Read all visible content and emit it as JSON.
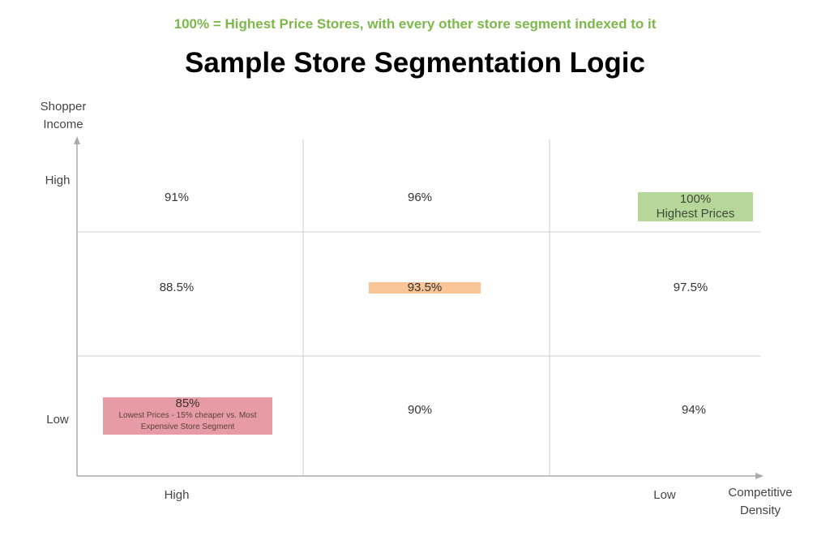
{
  "subtitle": "100% = Highest Price Stores, with every other store segment indexed to it",
  "title": "Sample Store Segmentation Logic",
  "y_axis": {
    "label_line1": "Shopper",
    "label_line2": "Income",
    "high": "High",
    "low": "Low"
  },
  "x_axis": {
    "label_line1": "Competitive",
    "label_line2": "Density",
    "high": "High",
    "low": "Low"
  },
  "cells": {
    "r1c1": "91%",
    "r1c2": "96%",
    "r1c3": {
      "value": "100%",
      "note": "Highest Prices",
      "color": "#b7d79a"
    },
    "r2c1": "88.5%",
    "r2c2": {
      "value": "93.5%",
      "color": "#f9c596"
    },
    "r2c3": "97.5%",
    "r3c1": {
      "value": "85%",
      "note": "Lowest Prices - 15% cheaper vs. Most Expensive Store Segment",
      "color": "#e79ca5"
    },
    "r3c2": "90%",
    "r3c3": "94%"
  }
}
